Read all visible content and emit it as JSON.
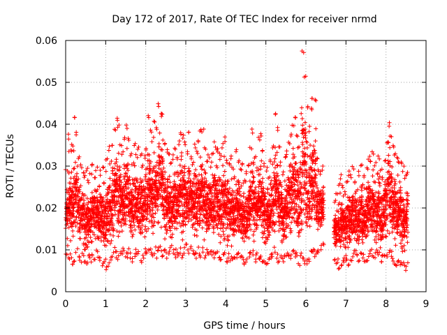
{
  "chart_data": {
    "type": "scatter",
    "title": "Day 172 of 2017, Rate Of TEC Index for receiver nrmd",
    "xlabel": "GPS time / hours",
    "ylabel": "ROTI / TECUs",
    "xlim": [
      0,
      9
    ],
    "ylim": [
      0,
      0.06
    ],
    "xticks": [
      "0",
      "1",
      "2",
      "3",
      "4",
      "5",
      "6",
      "7",
      "8",
      "9"
    ],
    "yticks": [
      "0",
      "0.01",
      "0.02",
      "0.03",
      "0.04",
      "0.05",
      "0.06"
    ],
    "grid": true,
    "marker": "+",
    "color": "#ff0000",
    "series": [
      {
        "name": "ROTI",
        "x": [
          0.0,
          0.05,
          0.1,
          0.15,
          0.2,
          0.25,
          0.3,
          0.35,
          0.4,
          0.45,
          0.5,
          0.55,
          0.6,
          0.65,
          0.7,
          0.75,
          0.8,
          0.85,
          0.9,
          0.95,
          1.0,
          1.05,
          1.1,
          1.15,
          1.2,
          1.25,
          1.3,
          1.35,
          1.4,
          1.45,
          1.5,
          1.55,
          1.6,
          1.65,
          1.7,
          1.75,
          1.8,
          1.85,
          1.9,
          1.95,
          2.0,
          2.05,
          2.1,
          2.15,
          2.2,
          2.25,
          2.3,
          2.35,
          2.4,
          2.45,
          2.5,
          2.55,
          2.6,
          2.65,
          2.7,
          2.75,
          2.8,
          2.85,
          2.9,
          2.95,
          3.0,
          3.05,
          3.1,
          3.15,
          3.2,
          3.25,
          3.3,
          3.35,
          3.4,
          3.45,
          3.5,
          3.55,
          3.6,
          3.65,
          3.7,
          3.75,
          3.8,
          3.85,
          3.9,
          3.95,
          4.0,
          4.05,
          4.1,
          4.15,
          4.2,
          4.25,
          4.3,
          4.35,
          4.4,
          4.45,
          4.5,
          4.55,
          4.6,
          4.65,
          4.7,
          4.75,
          4.8,
          4.85,
          4.9,
          4.95,
          5.0,
          5.05,
          5.1,
          5.15,
          5.2,
          5.25,
          5.3,
          5.35,
          5.4,
          5.45,
          5.5,
          5.55,
          5.6,
          5.65,
          5.7,
          5.75,
          5.8,
          5.85,
          5.9,
          5.95,
          6.0,
          6.05,
          6.1,
          6.15,
          6.2,
          6.25,
          6.3,
          6.35,
          6.4,
          6.7,
          6.75,
          6.8,
          6.85,
          6.9,
          6.95,
          7.0,
          7.05,
          7.1,
          7.15,
          7.2,
          7.25,
          7.3,
          7.35,
          7.4,
          7.45,
          7.5,
          7.55,
          7.6,
          7.65,
          7.7,
          7.75,
          7.8,
          7.85,
          7.9,
          7.95,
          8.0,
          8.05,
          8.1,
          8.15,
          8.2,
          8.25,
          8.3,
          8.35,
          8.4,
          8.45,
          8.5
        ],
        "y_min": [
          0.008,
          0.007,
          0.008,
          0.006,
          0.007,
          0.009,
          0.008,
          0.007,
          0.008,
          0.006,
          0.006,
          0.008,
          0.007,
          0.008,
          0.007,
          0.009,
          0.008,
          0.007,
          0.006,
          0.007,
          0.005,
          0.006,
          0.007,
          0.008,
          0.009,
          0.008,
          0.007,
          0.008,
          0.009,
          0.008,
          0.008,
          0.009,
          0.008,
          0.007,
          0.008,
          0.009,
          0.008,
          0.007,
          0.008,
          0.009,
          0.008,
          0.008,
          0.009,
          0.008,
          0.009,
          0.008,
          0.009,
          0.009,
          0.008,
          0.009,
          0.008,
          0.009,
          0.01,
          0.009,
          0.008,
          0.009,
          0.008,
          0.009,
          0.008,
          0.009,
          0.01,
          0.009,
          0.01,
          0.009,
          0.008,
          0.008,
          0.009,
          0.008,
          0.009,
          0.008,
          0.009,
          0.008,
          0.009,
          0.008,
          0.008,
          0.009,
          0.008,
          0.007,
          0.008,
          0.008,
          0.007,
          0.008,
          0.007,
          0.007,
          0.008,
          0.008,
          0.009,
          0.008,
          0.007,
          0.006,
          0.007,
          0.008,
          0.009,
          0.008,
          0.007,
          0.008,
          0.007,
          0.008,
          0.007,
          0.006,
          0.006,
          0.007,
          0.008,
          0.008,
          0.009,
          0.008,
          0.007,
          0.008,
          0.007,
          0.008,
          0.008,
          0.007,
          0.007,
          0.008,
          0.007,
          0.008,
          0.006,
          0.007,
          0.007,
          0.006,
          0.006,
          0.007,
          0.008,
          0.009,
          0.008,
          0.009,
          0.009,
          0.01,
          0.011,
          0.007,
          0.006,
          0.005,
          0.006,
          0.007,
          0.008,
          0.007,
          0.006,
          0.007,
          0.008,
          0.009,
          0.008,
          0.007,
          0.008,
          0.008,
          0.007,
          0.007,
          0.008,
          0.009,
          0.008,
          0.008,
          0.009,
          0.008,
          0.007,
          0.008,
          0.008,
          0.008,
          0.009,
          0.008,
          0.007,
          0.006,
          0.006,
          0.007,
          0.006,
          0.006,
          0.005,
          0.006
        ],
        "y_max": [
          0.03,
          0.038,
          0.034,
          0.036,
          0.043,
          0.039,
          0.033,
          0.031,
          0.029,
          0.028,
          0.03,
          0.027,
          0.029,
          0.031,
          0.028,
          0.03,
          0.026,
          0.029,
          0.031,
          0.027,
          0.033,
          0.035,
          0.032,
          0.036,
          0.039,
          0.043,
          0.04,
          0.036,
          0.034,
          0.038,
          0.04,
          0.037,
          0.033,
          0.031,
          0.036,
          0.033,
          0.035,
          0.034,
          0.031,
          0.033,
          0.035,
          0.043,
          0.039,
          0.037,
          0.041,
          0.04,
          0.045,
          0.043,
          0.044,
          0.036,
          0.034,
          0.033,
          0.031,
          0.033,
          0.035,
          0.033,
          0.036,
          0.039,
          0.038,
          0.036,
          0.034,
          0.039,
          0.033,
          0.031,
          0.036,
          0.034,
          0.037,
          0.039,
          0.04,
          0.035,
          0.032,
          0.033,
          0.031,
          0.034,
          0.036,
          0.035,
          0.034,
          0.033,
          0.036,
          0.037,
          0.032,
          0.031,
          0.033,
          0.03,
          0.028,
          0.034,
          0.032,
          0.03,
          0.031,
          0.027,
          0.029,
          0.031,
          0.035,
          0.039,
          0.033,
          0.03,
          0.037,
          0.039,
          0.035,
          0.031,
          0.03,
          0.028,
          0.032,
          0.036,
          0.043,
          0.04,
          0.035,
          0.031,
          0.029,
          0.033,
          0.034,
          0.036,
          0.039,
          0.041,
          0.043,
          0.038,
          0.035,
          0.044,
          0.058,
          0.054,
          0.046,
          0.04,
          0.044,
          0.048,
          0.046,
          0.032,
          0.03,
          0.029,
          0.03,
          0.022,
          0.024,
          0.026,
          0.028,
          0.026,
          0.024,
          0.027,
          0.029,
          0.028,
          0.03,
          0.027,
          0.025,
          0.029,
          0.031,
          0.026,
          0.028,
          0.03,
          0.033,
          0.032,
          0.034,
          0.031,
          0.029,
          0.033,
          0.03,
          0.028,
          0.032,
          0.037,
          0.041,
          0.038,
          0.035,
          0.034,
          0.033,
          0.031,
          0.032,
          0.03,
          0.028,
          0.029
        ]
      }
    ]
  }
}
